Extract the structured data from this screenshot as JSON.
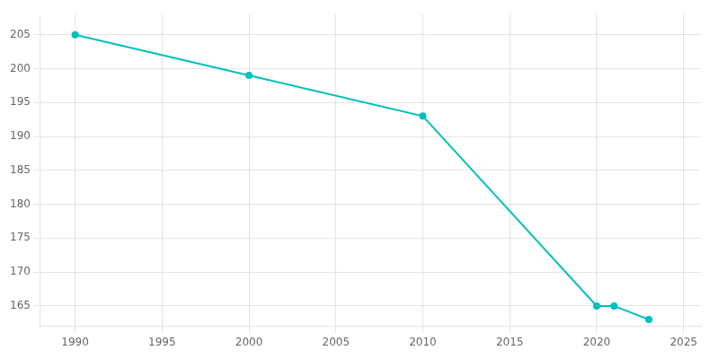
{
  "chart_data": {
    "type": "line",
    "x": [
      1990,
      2000,
      2010,
      2020,
      2021,
      2023
    ],
    "values": [
      205,
      199,
      193,
      165,
      165,
      163
    ],
    "color": "#00BFBF",
    "marker": "circle",
    "xlim": [
      1988,
      2026
    ],
    "xticks": [
      1990,
      1995,
      2000,
      2005,
      2010,
      2015,
      2020,
      2025
    ],
    "ylim": [
      162,
      208
    ],
    "yticks": [
      165,
      170,
      175,
      180,
      185,
      190,
      195,
      200,
      205
    ],
    "grid": true
  }
}
